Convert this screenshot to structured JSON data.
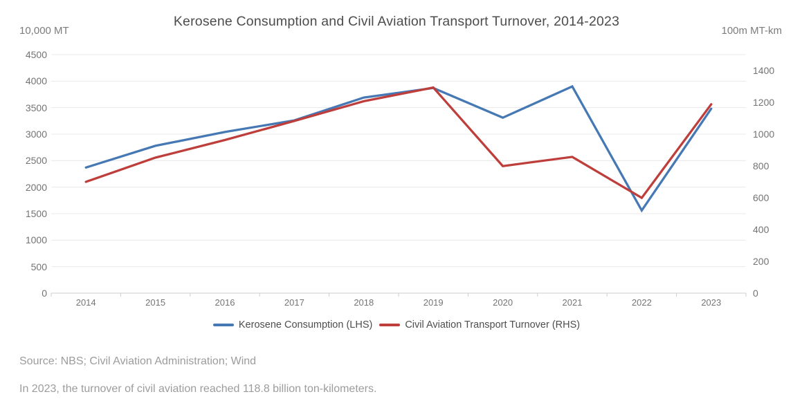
{
  "footer": {
    "source": "Source: NBS; Civil Aviation Administration; Wind",
    "caption": "In 2023, the turnover of civil aviation reached 118.8 billion ton-kilometers."
  },
  "chart_data": {
    "type": "line",
    "title": "Kerosene Consumption and Civil Aviation Transport Turnover, 2014-2023",
    "categories": [
      "2014",
      "2015",
      "2016",
      "2017",
      "2018",
      "2019",
      "2020",
      "2021",
      "2022",
      "2023"
    ],
    "series": [
      {
        "name": "Kerosene Consumption (LHS)",
        "axis": "left",
        "color": "#4679B4",
        "values": [
          2370,
          2780,
          3040,
          3260,
          3690,
          3870,
          3310,
          3900,
          1560,
          3480
        ]
      },
      {
        "name": "Civil Aviation Transport Turnover (RHS)",
        "axis": "right",
        "color": "#BE3E3B",
        "values": [
          700,
          852,
          963,
          1083,
          1207,
          1293,
          799,
          857,
          599,
          1188
        ]
      }
    ],
    "left_axis": {
      "unit": "10,000 MT",
      "min": 0,
      "max": 4500,
      "tick_step": 500,
      "tick_labels": [
        0,
        500,
        1000,
        1500,
        2000,
        2500,
        3000,
        3500,
        4000,
        4500
      ]
    },
    "right_axis": {
      "unit": "100m MT-km",
      "min": 0,
      "max": 1500,
      "tick_step": 200,
      "tick_labels": [
        0,
        200,
        400,
        600,
        800,
        1000,
        1200,
        1400
      ]
    },
    "grid": true,
    "legend_position": "bottom"
  },
  "colors": {
    "grid_line": "#e8e8e8",
    "axis_line": "#cccccc",
    "blue_series": "#4679B4",
    "red_series": "#BE3E3B"
  }
}
